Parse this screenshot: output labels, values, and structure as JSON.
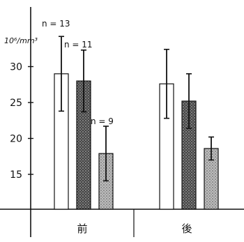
{
  "chart_data": {
    "type": "bar",
    "title": "",
    "xlabel": "",
    "ylabel": "10⁶/mm³",
    "ylim": [
      10,
      40
    ],
    "yticks": [
      "15",
      "20",
      "25",
      "30"
    ],
    "categories": [
      "前",
      "後"
    ],
    "series": [
      {
        "fill": "white",
        "values": [
          29.0,
          27.6
        ],
        "err": [
          5.2,
          4.8
        ]
      },
      {
        "fill": "hatched",
        "values": [
          28.0,
          25.2
        ],
        "err": [
          4.3,
          3.8
        ]
      },
      {
        "fill": "stipple",
        "values": [
          17.9,
          18.6
        ],
        "err": [
          3.8,
          1.6
        ]
      }
    ],
    "annotations": [
      {
        "label": "n = 13",
        "category": 0,
        "series": 0
      },
      {
        "label": "n = 11",
        "category": 0,
        "series": 1
      },
      {
        "label": "n = 9",
        "category": 0,
        "series": 2
      }
    ]
  },
  "colors": {
    "ink": "#111111",
    "hatch": "#3a3a3a",
    "stipple": "#8a8a8a",
    "bar_white": "#ffffff"
  }
}
